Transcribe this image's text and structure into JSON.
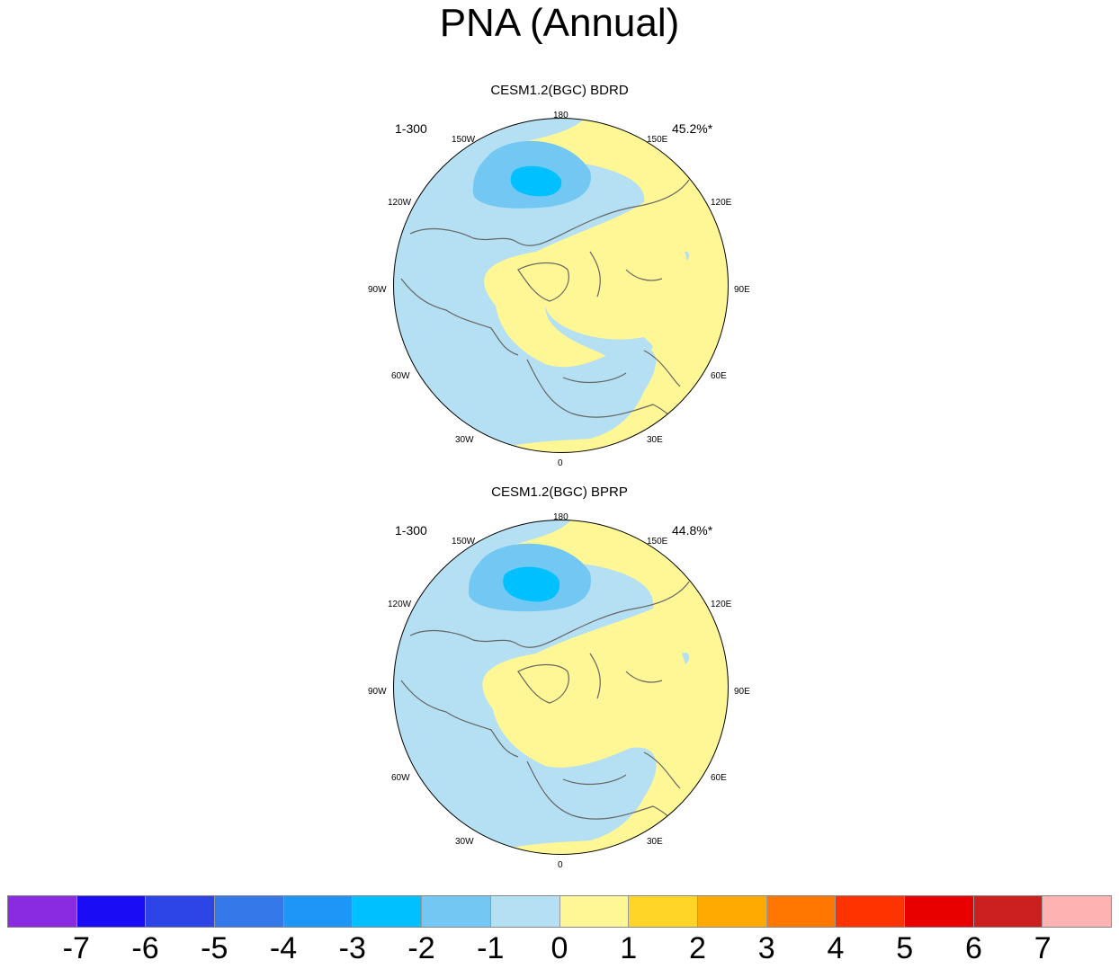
{
  "title": "PNA (Annual)",
  "panels": [
    {
      "title": "CESM1.2(BGC) BDRD",
      "years": "1-300",
      "percent": "45.2%*"
    },
    {
      "title": "CESM1.2(BGC) BPRP",
      "years": "1-300",
      "percent": "44.8%*"
    }
  ],
  "lon_labels": {
    "top": "180",
    "bottom": "0",
    "left_150": "150W",
    "right_150": "150E",
    "left_120": "120W",
    "right_120": "120E",
    "left_90": "90W",
    "right_90": "90E",
    "left_60": "60W",
    "right_60": "60E",
    "left_30": "30W",
    "right_30": "30E"
  },
  "colorbar": {
    "labels": [
      "-7",
      "-6",
      "-5",
      "-4",
      "-3",
      "-2",
      "-1",
      "0",
      "1",
      "2",
      "3",
      "4",
      "5",
      "6",
      "7"
    ],
    "colors": [
      "#8a2be2",
      "#1a0cf5",
      "#2d44e6",
      "#3478ea",
      "#1e96f8",
      "#00c0ff",
      "#72c8f2",
      "#b5dff2",
      "#fff795",
      "#ffd527",
      "#ffaa00",
      "#ff7700",
      "#ff3300",
      "#e80000",
      "#cc1f1f",
      "#ffb2b2"
    ]
  },
  "colors": {
    "neg1": "#b5dff2",
    "neg2": "#72c8f2",
    "neg3": "#00c0ff",
    "zero": "#fff795",
    "coast": "#666666"
  }
}
